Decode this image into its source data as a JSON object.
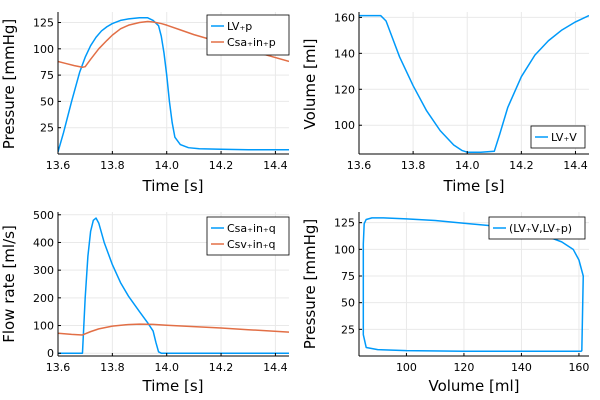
{
  "colors": {
    "blue": "#009AFA",
    "orange": "#E26F46"
  },
  "chart_data": [
    {
      "id": "p1",
      "type": "line",
      "xlabel": "Time [s]",
      "ylabel": "Pressure [mmHg]",
      "xlim": [
        13.6,
        14.45
      ],
      "ylim": [
        0,
        135
      ],
      "xticks": [
        13.6,
        13.8,
        14.0,
        14.2,
        14.4
      ],
      "xtick_labels": [
        "13.6",
        "13.8",
        "14.0",
        "14.2",
        "14.4"
      ],
      "yticks": [
        25,
        50,
        75,
        100,
        125
      ],
      "ytick_labels": [
        "25",
        "50",
        "75",
        "100",
        "125"
      ],
      "legend_position": "top-right",
      "series": [
        {
          "name": "LV₊p",
          "color": "#009AFA",
          "x": [
            13.6,
            13.62,
            13.65,
            13.68,
            13.7,
            13.72,
            13.74,
            13.76,
            13.78,
            13.8,
            13.83,
            13.86,
            13.9,
            13.93,
            13.95,
            13.97,
            13.98,
            13.99,
            14.0,
            14.01,
            14.02,
            14.03,
            14.05,
            14.08,
            14.12,
            14.2,
            14.3,
            14.45
          ],
          "y": [
            2,
            20,
            50,
            78,
            92,
            103,
            111,
            117,
            121,
            124,
            127,
            128.5,
            129.5,
            129.5,
            127,
            122,
            112,
            96,
            75,
            50,
            30,
            16,
            9,
            6,
            5,
            4.5,
            4,
            4
          ]
        },
        {
          "name": "Csa₊in₊p",
          "color": "#E26F46",
          "x": [
            13.6,
            13.63,
            13.66,
            13.69,
            13.7,
            13.72,
            13.75,
            13.78,
            13.8,
            13.83,
            13.86,
            13.9,
            13.93,
            13.95,
            13.98,
            14.0,
            14.05,
            14.1,
            14.2,
            14.3,
            14.45
          ],
          "y": [
            88,
            86,
            84,
            82.5,
            83,
            90,
            100,
            108,
            113,
            119,
            122.5,
            125,
            126,
            125.5,
            124,
            122.5,
            118,
            113.5,
            106,
            99,
            88
          ]
        }
      ]
    },
    {
      "id": "p2",
      "type": "line",
      "xlabel": "Time [s]",
      "ylabel": "Volume [ml]",
      "xlim": [
        13.6,
        14.45
      ],
      "ylim": [
        84,
        163
      ],
      "xticks": [
        13.6,
        13.8,
        14.0,
        14.2,
        14.4
      ],
      "xtick_labels": [
        "13.6",
        "13.8",
        "14.0",
        "14.2",
        "14.4"
      ],
      "yticks": [
        100,
        120,
        140,
        160
      ],
      "ytick_labels": [
        "100",
        "120",
        "140",
        "160"
      ],
      "legend_position": "bottom-right",
      "series": [
        {
          "name": "LV₊V",
          "color": "#009AFA",
          "x": [
            13.6,
            13.65,
            13.68,
            13.7,
            13.72,
            13.75,
            13.8,
            13.85,
            13.9,
            13.95,
            13.98,
            14.0,
            14.05,
            14.1,
            14.12,
            14.15,
            14.2,
            14.25,
            14.3,
            14.35,
            14.4,
            14.45
          ],
          "y": [
            161,
            161,
            161,
            158,
            150,
            138,
            122,
            108,
            97,
            89,
            86,
            85,
            85,
            85.5,
            95,
            110,
            127,
            139,
            147,
            153,
            157.5,
            161
          ]
        }
      ]
    },
    {
      "id": "p3",
      "type": "line",
      "xlabel": "Time [s]",
      "ylabel": "Flow rate [ml/s]",
      "xlim": [
        13.6,
        14.45
      ],
      "ylim": [
        -10,
        510
      ],
      "xticks": [
        13.6,
        13.8,
        14.0,
        14.2,
        14.4
      ],
      "xtick_labels": [
        "13.6",
        "13.8",
        "14.0",
        "14.2",
        "14.4"
      ],
      "yticks": [
        0,
        100,
        200,
        300,
        400,
        500
      ],
      "ytick_labels": [
        "0",
        "100",
        "200",
        "300",
        "400",
        "500"
      ],
      "legend_position": "top-right",
      "series": [
        {
          "name": "Csa₊in₊q",
          "color": "#009AFA",
          "x": [
            13.6,
            13.69,
            13.7,
            13.71,
            13.72,
            13.73,
            13.74,
            13.75,
            13.77,
            13.8,
            13.83,
            13.86,
            13.9,
            13.93,
            13.95,
            13.96,
            13.97,
            13.98,
            14.1,
            14.45
          ],
          "y": [
            0,
            0,
            200,
            350,
            440,
            480,
            488,
            470,
            400,
            320,
            255,
            205,
            150,
            110,
            80,
            40,
            5,
            0,
            0,
            0
          ]
        },
        {
          "name": "Csv₊in₊q",
          "color": "#E26F46",
          "x": [
            13.6,
            13.65,
            13.69,
            13.72,
            13.75,
            13.8,
            13.85,
            13.9,
            13.95,
            14.0,
            14.1,
            14.2,
            14.3,
            14.45
          ],
          "y": [
            72,
            68,
            66,
            78,
            88,
            98,
            103,
            105,
            104,
            101,
            96,
            91,
            85,
            76
          ]
        }
      ]
    },
    {
      "id": "p4",
      "type": "line",
      "xlabel": "Volume [ml]",
      "ylabel": "Pressure [mmHg]",
      "xlim": [
        83.5,
        163.5
      ],
      "ylim": [
        0,
        135
      ],
      "xticks": [
        100,
        120,
        140,
        160
      ],
      "xtick_labels": [
        "100",
        "120",
        "140",
        "160"
      ],
      "yticks": [
        25,
        50,
        75,
        100,
        125
      ],
      "ytick_labels": [
        "25",
        "50",
        "75",
        "100",
        "125"
      ],
      "legend_position": "top-right",
      "series": [
        {
          "name": "(LV₊V,LV₊p)",
          "color": "#009AFA",
          "x": [
            161,
            161.5,
            160,
            158,
            154,
            148,
            140,
            130,
            120,
            110,
            100,
            92,
            88,
            86,
            85.3,
            85,
            85,
            85,
            86,
            90,
            100,
            120,
            140,
            160,
            161
          ],
          "y": [
            4.5,
            75,
            90,
            100,
            107,
            113,
            118,
            122,
            124.5,
            127,
            128.5,
            129.5,
            129.5,
            128,
            124,
            105,
            60,
            20,
            8,
            6,
            5,
            4.5,
            4.5,
            4.5,
            4.5
          ]
        }
      ]
    }
  ]
}
